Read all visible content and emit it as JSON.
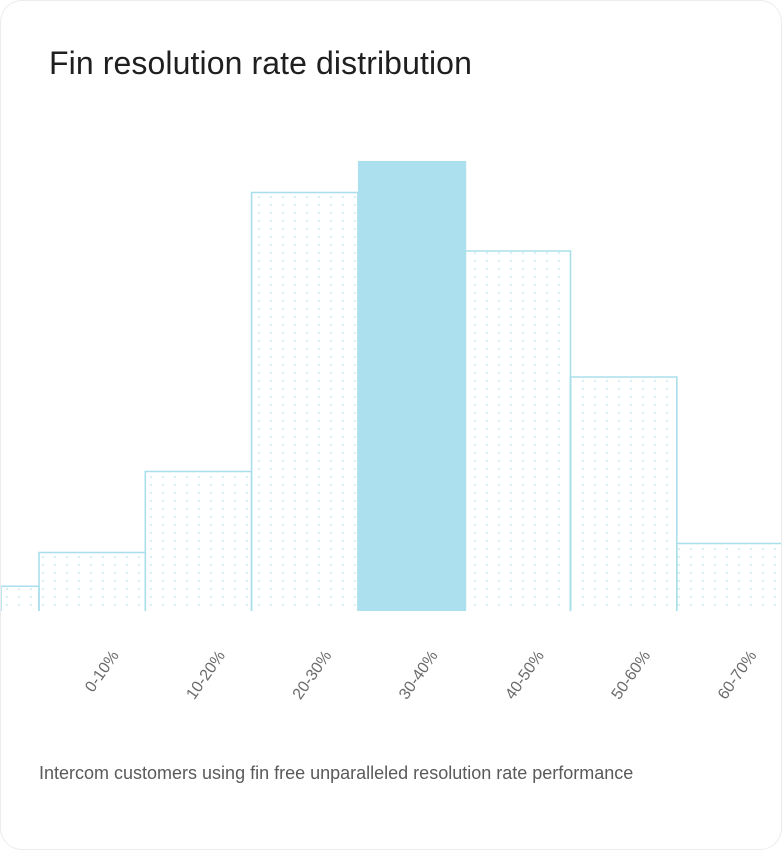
{
  "title": "Fin resolution rate distribution",
  "caption": "Intercom customers using fin free unparalleled resolution rate performance",
  "colors": {
    "bar_outline": "#a9dfec",
    "bar_dots": "#b9e5ef",
    "highlight_fill": "#ade0ee",
    "tick_label": "#6b6b6b"
  },
  "chart_data": {
    "type": "bar",
    "categories": [
      "0-10%",
      "10-20%",
      "20-30%",
      "30-40%",
      "40-50%",
      "50-60%",
      "60-70%"
    ],
    "values": [
      13,
      31,
      93,
      100,
      80,
      52,
      15
    ],
    "leading_partial_bar_value": 5.5,
    "highlighted_category": "30-40%",
    "ylim": [
      0,
      100
    ],
    "grid": false,
    "legend": "none"
  }
}
